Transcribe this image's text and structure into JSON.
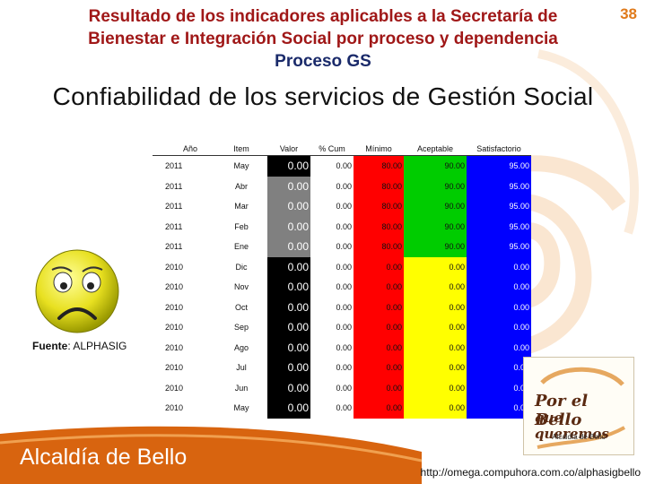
{
  "header": {
    "title_line1": "Resultado de los indicadores aplicables a la Secretaría de",
    "title_line2": "Bienestar e Integración Social por proceso y dependencia",
    "title_line3": "Proceso GS",
    "slide_number": "38"
  },
  "subtitle": "Confiabilidad de los servicios de Gestión Social",
  "table": {
    "headers": [
      "Año",
      "Item",
      "Valor",
      "% Cum",
      "Mínimo",
      "Aceptable",
      "Satisfactorio"
    ],
    "rows": [
      [
        "2011",
        "May",
        "0.00",
        "0.00",
        "80.00",
        "90.00",
        "95.00"
      ],
      [
        "2011",
        "Abr",
        "0.00",
        "0.00",
        "80.00",
        "90.00",
        "95.00"
      ],
      [
        "2011",
        "Mar",
        "0.00",
        "0.00",
        "80.00",
        "90.00",
        "95.00"
      ],
      [
        "2011",
        "Feb",
        "0.00",
        "0.00",
        "80.00",
        "90.00",
        "95.00"
      ],
      [
        "2011",
        "Ene",
        "0.00",
        "0.00",
        "80.00",
        "90.00",
        "95.00"
      ],
      [
        "2010",
        "Dic",
        "0.00",
        "0.00",
        "0.00",
        "0.00",
        "0.00"
      ],
      [
        "2010",
        "Nov",
        "0.00",
        "0.00",
        "0.00",
        "0.00",
        "0.00"
      ],
      [
        "2010",
        "Oct",
        "0.00",
        "0.00",
        "0.00",
        "0.00",
        "0.00"
      ],
      [
        "2010",
        "Sep",
        "0.00",
        "0.00",
        "0.00",
        "0.00",
        "0.00"
      ],
      [
        "2010",
        "Ago",
        "0.00",
        "0.00",
        "0.00",
        "0.00",
        "0.00"
      ],
      [
        "2010",
        "Jul",
        "0.00",
        "0.00",
        "0.00",
        "0.00",
        "0.00"
      ],
      [
        "2010",
        "Jun",
        "0.00",
        "0.00",
        "0.00",
        "0.00",
        "0.00"
      ],
      [
        "2010",
        "May",
        "0.00",
        "0.00",
        "0.00",
        "0.00",
        "0.00"
      ]
    ],
    "valor_colors": [
      "black",
      "gray",
      "gray",
      "gray",
      "gray",
      "black",
      "black",
      "black",
      "black",
      "black",
      "black",
      "black",
      "black"
    ]
  },
  "indicator_icon": "sad-face-icon",
  "source": {
    "label": "Fuente",
    "value": ": ALPHASIG"
  },
  "logo": {
    "line1": "Por el Bello",
    "line2": "que queremos",
    "caption": "Alcaldía de Bello"
  },
  "footer": {
    "brand": "Alcaldía de Bello",
    "url": "http://omega.compuhora.com.co/alphasigbello"
  },
  "colors": {
    "title": "#a01818",
    "title_line3": "#1a2a6a",
    "slide_number": "#e07a1a",
    "swirl": "#f4c99a",
    "footer_band": "#d8640f",
    "minimo": "#ff0000",
    "aceptable": "#ffff00",
    "aceptable_2011": "#00cc00",
    "satisfactorio": "#0000ff",
    "valor_gray": "#808080",
    "valor_black": "#000000"
  }
}
